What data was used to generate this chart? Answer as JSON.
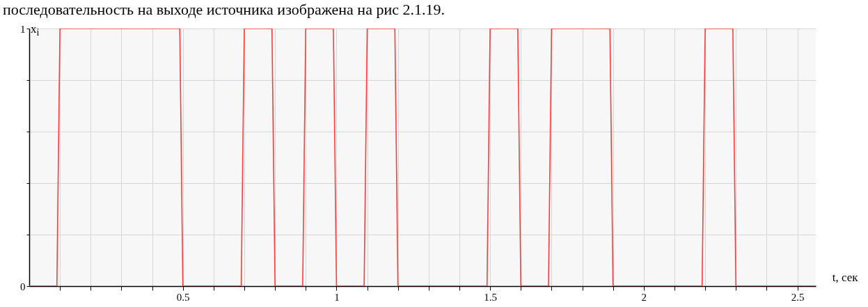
{
  "chart_data": {
    "type": "line",
    "xlabel": "t, сек",
    "ylabel": "x$_{i}$",
    "annotations": [
      "последовательность на выходе источника изображена на рис 2.1.19."
    ],
    "x": [
      0,
      0.09,
      0.1,
      0.49,
      0.5,
      0.69,
      0.7,
      0.79,
      0.8,
      0.89,
      0.9,
      0.99,
      1.0,
      1.09,
      1.1,
      1.19,
      1.2,
      1.49,
      1.5,
      1.59,
      1.6,
      1.69,
      1.7,
      1.89,
      1.9,
      2.19,
      2.2,
      2.29,
      2.3,
      2.56
    ],
    "series": [
      {
        "color": "#ff3b3b",
        "values": [
          0,
          0,
          1,
          1,
          0,
          0,
          1,
          1,
          0,
          0,
          1,
          1,
          0,
          0,
          1,
          1,
          0,
          0,
          1,
          1,
          0,
          0,
          1,
          1,
          0,
          0,
          1,
          1,
          0,
          0
        ]
      }
    ],
    "xlim": [
      0,
      2.56
    ],
    "xticks": [
      {
        "value": 0.1,
        "label": null
      },
      {
        "value": 0.2,
        "label": null
      },
      {
        "value": 0.3,
        "label": null
      },
      {
        "value": 0.4,
        "label": null
      },
      0.5,
      {
        "value": 0.6,
        "label": null
      },
      {
        "value": 0.7,
        "label": null
      },
      {
        "value": 0.8,
        "label": null
      },
      {
        "value": 0.9,
        "label": null
      },
      1,
      {
        "value": 1.1,
        "label": null
      },
      {
        "value": 1.2,
        "label": null
      },
      {
        "value": 1.3,
        "label": null
      },
      {
        "value": 1.4,
        "label": null
      },
      1.5,
      {
        "value": 1.6,
        "label": null
      },
      {
        "value": 1.7,
        "label": null
      },
      {
        "value": 1.8,
        "label": null
      },
      {
        "value": 1.9,
        "label": null
      },
      2,
      {
        "value": 2.1,
        "label": null
      },
      {
        "value": 2.2,
        "label": null
      },
      {
        "value": 2.3,
        "label": null
      },
      {
        "value": 2.4,
        "label": null
      },
      2.5
    ],
    "ylim": [
      0,
      1
    ],
    "yticks": [
      0,
      {
        "value": 0.2,
        "label": null
      },
      {
        "value": 0.4,
        "label": null
      },
      {
        "value": 0.6,
        "label": null
      },
      {
        "value": 0.8,
        "label": null
      },
      1
    ],
    "grid": true,
    "marker": "none",
    "line_style": "solid"
  }
}
